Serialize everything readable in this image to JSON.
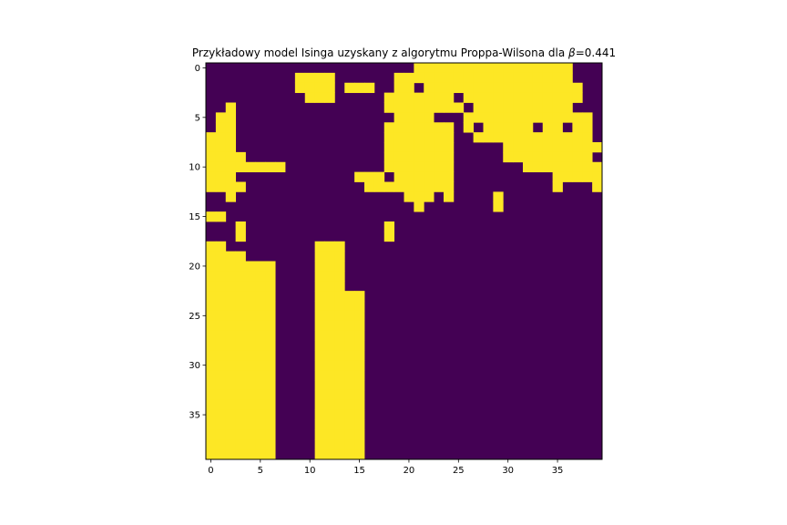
{
  "chart_data": {
    "type": "heatmap",
    "title": "Przykładowy model Isinga uzyskany z algorytmu Proppa-Wilsona dla ",
    "title_symbol": "β",
    "title_value": "=0.441",
    "xlabel": "",
    "ylabel": "",
    "xlim": [
      -0.5,
      39.5
    ],
    "ylim": [
      39.5,
      -0.5
    ],
    "x_ticks": [
      0,
      5,
      10,
      15,
      20,
      25,
      30,
      35
    ],
    "y_ticks": [
      0,
      5,
      10,
      15,
      20,
      25,
      30,
      35
    ],
    "grid": false,
    "colors": {
      "low": "#440154",
      "high": "#fde725"
    },
    "rows": [
      "0000000000000000000001111111111111111000",
      "0000000001111000000111111111111111111000",
      "0000000001111011100110111111111111111100",
      "0000000000111000001111111011111111111100",
      "0010000000000000001111111101111111111000",
      "0110000000000000000111100011111111111110",
      "0110000000000000001111111010111110110110",
      "1110000000000000001111111001111111111110",
      "1110000000000000001111111000001111111111",
      "1111000000000000001111111000001111111110",
      "1111111100000000001111111000000011111111",
      "1110000000000001110111111000000000011111",
      "1111000000000000111111111000000000010001",
      "0010000000000000000011101000010000000000",
      "0000000000000000000001000000010000000000",
      "1100000000000000000000000000000000000000",
      "0001000000000000001000000000000000000000",
      "0001000000000000001000000000000000000000",
      "1100000000011100000000000000000000000000",
      "1111000000011100000000000000000000000000",
      "1111111000011100000000000000000000000000",
      "1111111000011100000000000000000000000000",
      "1111111000011100000000000000000000000000",
      "1111111000011111000000000000000000000000",
      "1111111000011111000000000000000000000000",
      "1111111000011111000000000000000000000000",
      "1111111000011111000000000000000000000000",
      "1111111000011111000000000000000000000000",
      "1111111000011111000000000000000000000000",
      "1111111000011111000000000000000000000000",
      "1111111000011111000000000000000000000000",
      "1111111000011111000000000000000000000000",
      "1111111000011111000000000000000000000000",
      "1111111000011111000000000000000000000000",
      "1111111000011111000000000000000000000000",
      "1111111000011111000000000000000000000000",
      "1111111000011111000000000000000000000000",
      "1111111000011111000000000000000000000000",
      "1111111000011111000000000000000000000000",
      "1111111000011111000000000000000000000000"
    ]
  }
}
